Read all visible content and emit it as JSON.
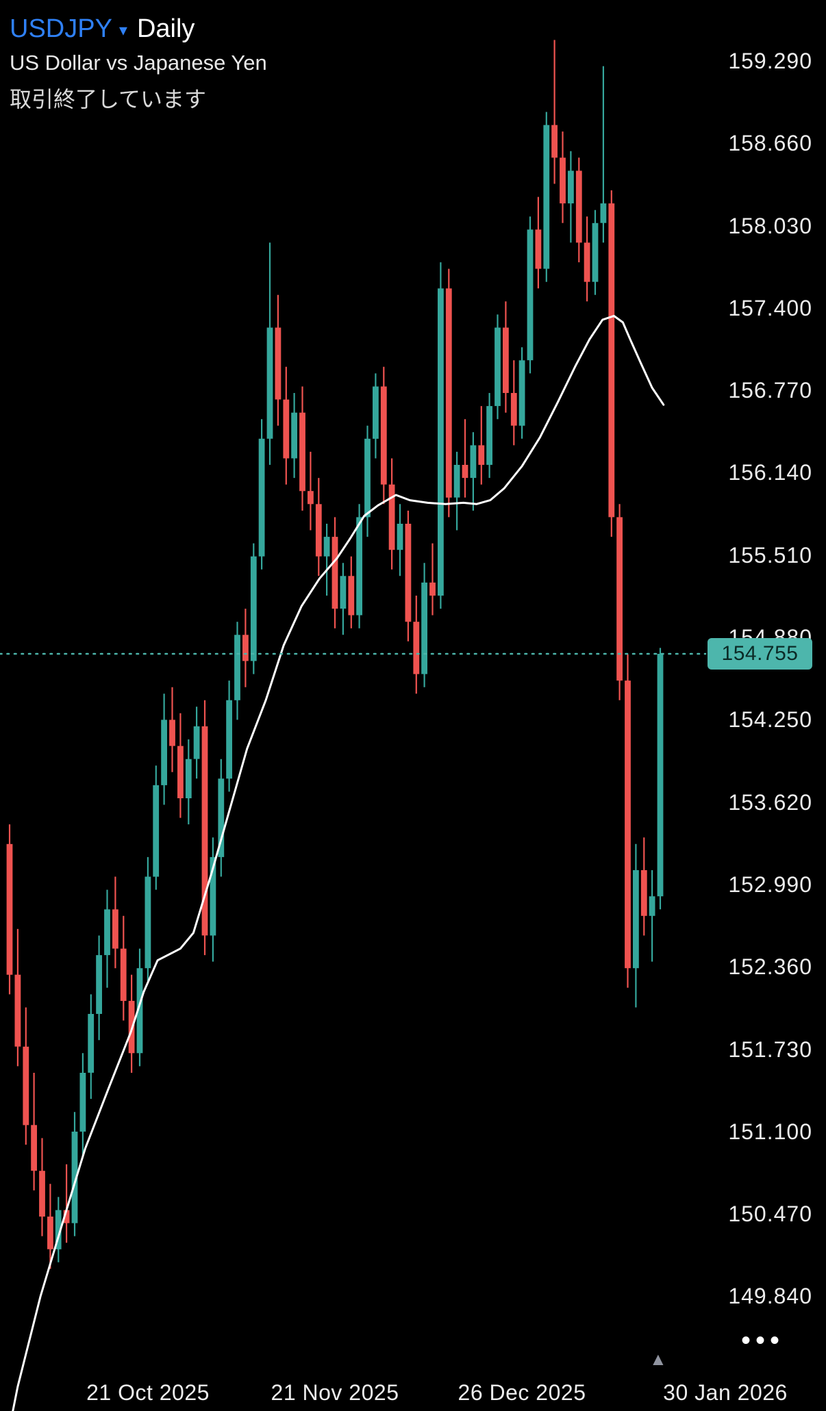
{
  "colors": {
    "bg": "#000000",
    "up": "#35a79c",
    "down": "#ef5350",
    "ma": "#ffffff",
    "accent": "#4db6ac",
    "badge_text": "#0c2b27",
    "symbol": "#2f80f5",
    "text": "#ececec",
    "desc": "#e8e8e8",
    "status": "#d9d9d9",
    "muted": "#9094a0"
  },
  "header": {
    "symbol": "USDJPY",
    "caret": "▾",
    "interval": "Daily",
    "description": "US Dollar vs Japanese Yen",
    "status": "取引終了しています"
  },
  "price_scale": {
    "labels": [
      "159.290",
      "158.660",
      "158.030",
      "157.400",
      "156.770",
      "156.140",
      "155.510",
      "154.880",
      "154.250",
      "153.620",
      "152.990",
      "152.360",
      "151.730",
      "151.100",
      "150.470",
      "149.840"
    ],
    "last_price": "154.755"
  },
  "footer": {
    "more_icon": "•••",
    "marker_icon": "▲"
  },
  "chart_data": {
    "type": "candlestick",
    "title": "USDJPY Daily — US Dollar vs Japanese Yen",
    "interval": "Daily",
    "grid": false,
    "y_tick_interval": 0.63,
    "y_range_visible": [
      148.9,
      159.5
    ],
    "last_price": 154.755,
    "price_line": {
      "value": 154.755,
      "style": "dotted"
    },
    "x_ticks": [
      {
        "label": "21 Oct 2025",
        "index": 17
      },
      {
        "label": "21 Nov 2025",
        "index": 40
      },
      {
        "label": "26 Dec 2025",
        "index": 63
      },
      {
        "label": "30 Jan 2026",
        "index": 88
      }
    ],
    "candles": [
      [
        153.3,
        153.45,
        152.15,
        152.3
      ],
      [
        152.3,
        152.65,
        151.6,
        151.75
      ],
      [
        151.75,
        152.05,
        151.0,
        151.15
      ],
      [
        151.15,
        151.55,
        150.65,
        150.8
      ],
      [
        150.8,
        151.05,
        150.3,
        150.45
      ],
      [
        150.45,
        150.7,
        150.05,
        150.2
      ],
      [
        150.2,
        150.6,
        150.1,
        150.5
      ],
      [
        150.5,
        150.85,
        150.25,
        150.4
      ],
      [
        150.4,
        151.25,
        150.3,
        151.1
      ],
      [
        151.1,
        151.7,
        150.9,
        151.55
      ],
      [
        151.55,
        152.15,
        151.35,
        152.0
      ],
      [
        152.0,
        152.6,
        151.8,
        152.45
      ],
      [
        152.45,
        152.95,
        152.2,
        152.8
      ],
      [
        152.8,
        153.05,
        152.35,
        152.5
      ],
      [
        152.5,
        152.75,
        151.95,
        152.1
      ],
      [
        152.1,
        152.3,
        151.55,
        151.7
      ],
      [
        151.7,
        152.5,
        151.6,
        152.35
      ],
      [
        152.35,
        153.2,
        152.25,
        153.05
      ],
      [
        153.05,
        153.9,
        152.95,
        153.75
      ],
      [
        153.75,
        154.45,
        153.6,
        154.25
      ],
      [
        154.25,
        154.5,
        153.85,
        154.05
      ],
      [
        154.05,
        154.3,
        153.5,
        153.65
      ],
      [
        153.65,
        154.1,
        153.45,
        153.95
      ],
      [
        153.95,
        154.35,
        153.8,
        154.2
      ],
      [
        154.2,
        154.4,
        152.45,
        152.6
      ],
      [
        152.6,
        153.35,
        152.4,
        153.2
      ],
      [
        153.2,
        153.95,
        153.05,
        153.8
      ],
      [
        153.8,
        154.55,
        153.7,
        154.4
      ],
      [
        154.4,
        155.0,
        154.25,
        154.9
      ],
      [
        154.9,
        155.1,
        154.5,
        154.7
      ],
      [
        154.7,
        155.6,
        154.6,
        155.5
      ],
      [
        155.5,
        156.55,
        155.4,
        156.4
      ],
      [
        156.4,
        157.9,
        156.2,
        157.25
      ],
      [
        157.25,
        157.5,
        156.5,
        156.7
      ],
      [
        156.7,
        156.95,
        156.05,
        156.25
      ],
      [
        156.25,
        156.75,
        156.1,
        156.6
      ],
      [
        156.6,
        156.8,
        155.85,
        156.0
      ],
      [
        156.0,
        156.3,
        155.7,
        155.9
      ],
      [
        155.9,
        156.1,
        155.35,
        155.5
      ],
      [
        155.5,
        155.75,
        155.2,
        155.65
      ],
      [
        155.65,
        155.8,
        154.95,
        155.1
      ],
      [
        155.1,
        155.45,
        154.9,
        155.35
      ],
      [
        155.35,
        155.5,
        154.95,
        155.05
      ],
      [
        155.05,
        155.9,
        154.95,
        155.8
      ],
      [
        155.8,
        156.5,
        155.65,
        156.4
      ],
      [
        156.4,
        156.9,
        156.25,
        156.8
      ],
      [
        156.8,
        156.95,
        155.9,
        156.05
      ],
      [
        156.05,
        156.25,
        155.4,
        155.55
      ],
      [
        155.55,
        155.9,
        155.35,
        155.75
      ],
      [
        155.75,
        155.85,
        154.85,
        155.0
      ],
      [
        155.0,
        155.2,
        154.45,
        154.6
      ],
      [
        154.6,
        155.45,
        154.5,
        155.3
      ],
      [
        155.3,
        155.6,
        155.05,
        155.2
      ],
      [
        155.2,
        157.75,
        155.1,
        157.55
      ],
      [
        157.55,
        157.7,
        155.8,
        155.95
      ],
      [
        155.95,
        156.3,
        155.7,
        156.2
      ],
      [
        156.2,
        156.55,
        155.95,
        156.1
      ],
      [
        156.1,
        156.45,
        155.85,
        156.35
      ],
      [
        156.35,
        156.65,
        156.05,
        156.2
      ],
      [
        156.2,
        156.75,
        156.1,
        156.65
      ],
      [
        156.65,
        157.35,
        156.55,
        157.25
      ],
      [
        157.25,
        157.45,
        156.6,
        156.75
      ],
      [
        156.75,
        157.0,
        156.35,
        156.5
      ],
      [
        156.5,
        157.1,
        156.4,
        157.0
      ],
      [
        157.0,
        158.1,
        156.9,
        158.0
      ],
      [
        158.0,
        158.25,
        157.55,
        157.7
      ],
      [
        157.7,
        158.9,
        157.6,
        158.8
      ],
      [
        158.8,
        159.45,
        158.35,
        158.55
      ],
      [
        158.55,
        158.75,
        158.05,
        158.2
      ],
      [
        158.2,
        158.6,
        157.9,
        158.45
      ],
      [
        158.45,
        158.55,
        157.75,
        157.9
      ],
      [
        157.9,
        158.1,
        157.45,
        157.6
      ],
      [
        157.6,
        158.15,
        157.5,
        158.05
      ],
      [
        158.05,
        159.25,
        157.9,
        158.2
      ],
      [
        158.2,
        158.3,
        155.65,
        155.8
      ],
      [
        155.8,
        155.9,
        154.4,
        154.55
      ],
      [
        154.55,
        154.75,
        152.2,
        152.35
      ],
      [
        152.35,
        153.3,
        152.05,
        153.1
      ],
      [
        153.1,
        153.35,
        152.6,
        152.75
      ],
      [
        152.75,
        153.1,
        152.4,
        152.9
      ],
      [
        152.9,
        154.8,
        152.8,
        154.755
      ]
    ],
    "ma_line": {
      "name": "moving-average",
      "color": "#ffffff",
      "points": [
        [
          0.2,
          148.9
        ],
        [
          1.0,
          149.15
        ],
        [
          3.8,
          149.84
        ],
        [
          6.6,
          150.42
        ],
        [
          9.3,
          150.97
        ],
        [
          12.1,
          151.42
        ],
        [
          14.9,
          151.86
        ],
        [
          16.5,
          152.17
        ],
        [
          18.2,
          152.41
        ],
        [
          21.0,
          152.5
        ],
        [
          22.6,
          152.62
        ],
        [
          24.8,
          153.07
        ],
        [
          27.0,
          153.55
        ],
        [
          29.2,
          154.03
        ],
        [
          31.5,
          154.4
        ],
        [
          33.7,
          154.82
        ],
        [
          35.9,
          155.12
        ],
        [
          38.1,
          155.33
        ],
        [
          40.3,
          155.49
        ],
        [
          41.9,
          155.64
        ],
        [
          43.6,
          155.81
        ],
        [
          45.3,
          155.89
        ],
        [
          47.5,
          155.97
        ],
        [
          49.2,
          155.93
        ],
        [
          51.4,
          155.91
        ],
        [
          53.6,
          155.9
        ],
        [
          55.8,
          155.91
        ],
        [
          57.4,
          155.9
        ],
        [
          59.1,
          155.93
        ],
        [
          60.8,
          156.02
        ],
        [
          63.0,
          156.19
        ],
        [
          65.2,
          156.41
        ],
        [
          67.4,
          156.68
        ],
        [
          69.6,
          156.96
        ],
        [
          71.3,
          157.16
        ],
        [
          72.9,
          157.31
        ],
        [
          74.3,
          157.34
        ],
        [
          75.4,
          157.29
        ],
        [
          76.3,
          157.16
        ],
        [
          77.6,
          156.98
        ],
        [
          79.0,
          156.79
        ],
        [
          80.4,
          156.66
        ]
      ]
    }
  }
}
